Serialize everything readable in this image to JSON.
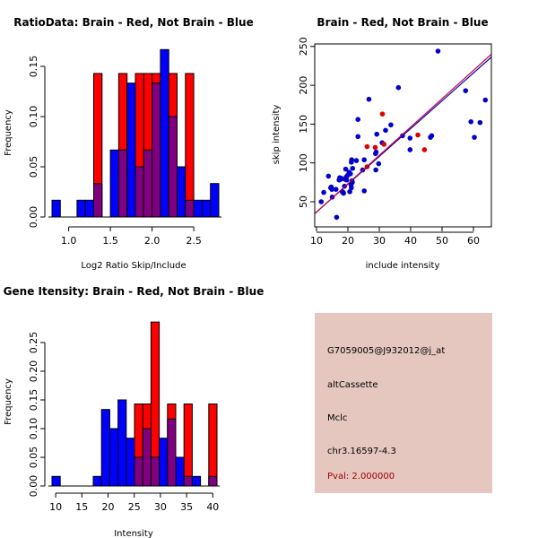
{
  "chart_data": [
    {
      "type": "bar",
      "subtype": "overlapping-histogram",
      "title": "RatioData: Brain - Red, Not Brain - Blue",
      "xlabel": "Log2 Ratio Skip/Include",
      "ylabel": "Frequency",
      "xlim": [
        0.8,
        2.8
      ],
      "ylim": [
        0,
        0.1667
      ],
      "x_ticks": [
        1.0,
        1.5,
        2.0,
        2.5
      ],
      "x_tick_labels": [
        "1.0",
        "1.5",
        "2.0",
        "2.5"
      ],
      "y_ticks": [
        0,
        0.05,
        0.1,
        0.15
      ],
      "y_tick_labels": [
        "0.00",
        "0.05",
        "0.10",
        "0.15"
      ],
      "bin_edges": [
        0.8,
        0.9,
        1.0,
        1.1,
        1.2,
        1.3,
        1.4,
        1.5,
        1.6,
        1.7,
        1.8,
        1.9,
        2.0,
        2.1,
        2.2,
        2.3,
        2.4,
        2.5,
        2.6,
        2.7,
        2.8
      ],
      "series": [
        {
          "name": "Brain",
          "color": "#ff0000",
          "values": [
            0,
            0,
            0,
            0,
            0,
            0.1429,
            0,
            0,
            0.1429,
            0,
            0.1429,
            0.1429,
            0.1429,
            0,
            0.1429,
            0,
            0.1429,
            0,
            0,
            0
          ]
        },
        {
          "name": "Not Brain",
          "color": "#0000ff",
          "values": [
            0.0167,
            0,
            0,
            0.0167,
            0.0167,
            0.0333,
            0,
            0.0667,
            0.0667,
            0.1333,
            0.05,
            0.0667,
            0.1333,
            0.1667,
            0.1,
            0.05,
            0.0167,
            0.0167,
            0.0167,
            0.0333
          ]
        }
      ],
      "overlap_color": "#800080"
    },
    {
      "type": "scatter",
      "title": "Brain - Red, Not Brain - Blue",
      "xlabel": "include intensity",
      "ylabel": "skip intensity",
      "xlim": [
        9,
        65
      ],
      "ylim": [
        22,
        255
      ],
      "x_ticks": [
        10,
        20,
        30,
        40,
        50,
        60
      ],
      "x_tick_labels": [
        "10",
        "20",
        "30",
        "40",
        "50",
        "60"
      ],
      "y_ticks": [
        50,
        100,
        150,
        200,
        250
      ],
      "y_tick_labels": [
        "50",
        "100",
        "150",
        "200",
        "250"
      ],
      "series": [
        {
          "name": "Not Brain",
          "color": "#0000cc",
          "points": [
            [
              11.5,
              50
            ],
            [
              12.3,
              62
            ],
            [
              13.8,
              83
            ],
            [
              14.7,
              69
            ],
            [
              14.9,
              66
            ],
            [
              15.0,
              56
            ],
            [
              16.2,
              66
            ],
            [
              16.4,
              30
            ],
            [
              17.4,
              81
            ],
            [
              17.7,
              79
            ],
            [
              18.2,
              63
            ],
            [
              18.5,
              62
            ],
            [
              18.9,
              70
            ],
            [
              19.1,
              79
            ],
            [
              19.3,
              92
            ],
            [
              19.5,
              82
            ],
            [
              19.9,
              84
            ],
            [
              20.4,
              88
            ],
            [
              20.6,
              63
            ],
            [
              21.1,
              68
            ],
            [
              21.1,
              101
            ],
            [
              21.2,
              104
            ],
            [
              21.4,
              75
            ],
            [
              21.5,
              93
            ],
            [
              22.7,
              103
            ],
            [
              23.2,
              156
            ],
            [
              23.2,
              134
            ],
            [
              24.7,
              91
            ],
            [
              25.2,
              104
            ],
            [
              25.2,
              64
            ],
            [
              26.7,
              182
            ],
            [
              28.8,
              112
            ],
            [
              28.9,
              91
            ],
            [
              29.0,
              114
            ],
            [
              29.2,
              137
            ],
            [
              29.8,
              99
            ],
            [
              30.9,
              126
            ],
            [
              32.0,
              142
            ],
            [
              33.7,
              149
            ],
            [
              36.1,
              197
            ],
            [
              37.4,
              135
            ],
            [
              39.8,
              132
            ],
            [
              39.8,
              117
            ],
            [
              46.3,
              133
            ],
            [
              46.7,
              135
            ],
            [
              48.7,
              244
            ],
            [
              57.5,
              193
            ],
            [
              59.2,
              153
            ],
            [
              60.3,
              133
            ],
            [
              62.1,
              152
            ],
            [
              63.8,
              181
            ],
            [
              18.0,
              80
            ],
            [
              19.6,
              78
            ],
            [
              20.8,
              86
            ],
            [
              17.2,
              78
            ],
            [
              21.0,
              72
            ],
            [
              18.6,
              61
            ],
            [
              14.5,
              68
            ],
            [
              21.3,
              77
            ],
            [
              20.2,
              85
            ]
          ]
        },
        {
          "name": "Brain",
          "color": "#dd0000",
          "points": [
            [
              26.1,
              95
            ],
            [
              26.1,
              121
            ],
            [
              28.7,
              120
            ],
            [
              31.0,
              163
            ],
            [
              31.5,
              124
            ],
            [
              42.3,
              136
            ],
            [
              44.4,
              117
            ]
          ]
        }
      ],
      "lines": [
        {
          "name": "Not Brain fit",
          "color": "#0000aa",
          "intercept": 1.0,
          "slope": 3.58
        },
        {
          "name": "Brain fit",
          "color": "#cc0044",
          "intercept": 0.2,
          "slope": 3.65
        }
      ]
    },
    {
      "type": "bar",
      "subtype": "overlapping-histogram",
      "title": "Gene Itensity: Brain - Red, Not Brain - Blue",
      "xlabel": "Intensity",
      "ylabel": "Frequency",
      "xlim": [
        9.3,
        40.8
      ],
      "ylim": [
        0,
        0.2857
      ],
      "x_ticks": [
        10,
        15,
        20,
        25,
        30,
        35,
        40
      ],
      "x_tick_labels": [
        "10",
        "15",
        "20",
        "25",
        "30",
        "35",
        "40"
      ],
      "y_ticks": [
        0,
        0.05,
        0.1,
        0.15,
        0.2,
        0.25
      ],
      "y_tick_labels": [
        "0.00",
        "0.05",
        "0.10",
        "0.15",
        "0.20",
        "0.25"
      ],
      "bin_edges": [
        9.3,
        10.875,
        12.45,
        14.025,
        15.6,
        17.175,
        18.75,
        20.325,
        21.9,
        23.475,
        25.05,
        26.625,
        28.2,
        29.775,
        31.35,
        32.925,
        34.5,
        36.075,
        37.65,
        39.225,
        40.8
      ],
      "series": [
        {
          "name": "Brain",
          "color": "#ff0000",
          "values": [
            0,
            0,
            0,
            0,
            0,
            0,
            0,
            0,
            0,
            0,
            0.1429,
            0.1429,
            0.2857,
            0,
            0.1429,
            0,
            0.1429,
            0,
            0,
            0.1429
          ]
        },
        {
          "name": "Not Brain",
          "color": "#0000ff",
          "values": [
            0.0167,
            0,
            0,
            0,
            0,
            0.0167,
            0.1333,
            0.1,
            0.15,
            0.0833,
            0.05,
            0.1,
            0.05,
            0.0833,
            0.1167,
            0.05,
            0.0167,
            0.0167,
            0,
            0.0167
          ]
        }
      ],
      "overlap_color": "#800080"
    }
  ],
  "info_panel": {
    "probe_id": "G7059005@J932012@j_at",
    "event_type": "altCassette",
    "gene": "Mclc",
    "location": "chr3.16597-4.3",
    "pval": "Pval: 2.000000"
  }
}
